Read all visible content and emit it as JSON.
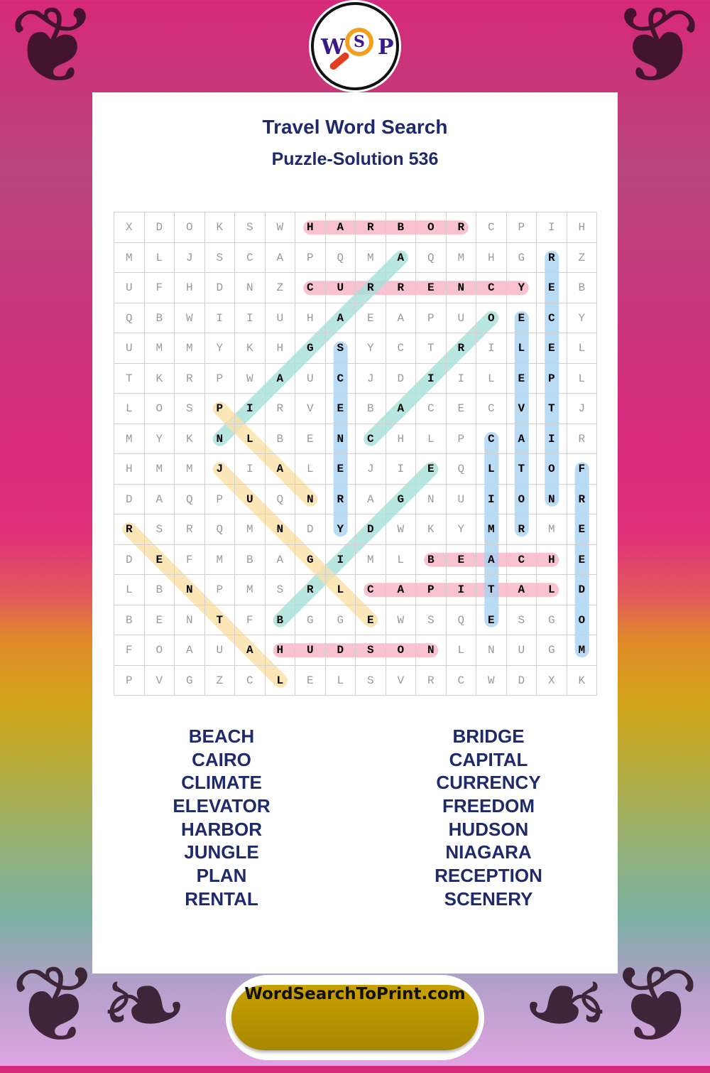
{
  "logo": {
    "letters": [
      "W",
      "S",
      "P"
    ]
  },
  "title": "Travel Word Search",
  "subtitle": "Puzzle-Solution 536",
  "grid": [
    "XDOKSWHARBORCPIH",
    "MLJSCAPQMAQMHGRZ",
    "UFHDNZCURRENCYEB",
    "QBWIIUHAEAPUOECY",
    "UMMYKHGSYCTRILEL",
    "TKRPWAUCJDIILEPL",
    "LOSPIRVEBACECVTJ",
    "MYKNLBENCHLPCAIR",
    "HMMJIALEJIEQLTOF",
    "DAQPUQNRAGNUIONR",
    "RSRQMNDYDWKYMRME",
    "DEFMBAGIMLBEACHE",
    "LBNPMSRLCAPITALD",
    "BENTFBGGEWSQESGO",
    "FOAUAHUDSONLNUGM",
    "PVGZCLELSVRCWDXK"
  ],
  "colors": {
    "horizontal": "#f7b3c6",
    "vertical": "#a9d3f2",
    "diag_up": "#a6e0da",
    "diag_down": "#fbe0a6",
    "text": "#1f2a6a",
    "pill": "#b89400"
  },
  "solutions": [
    {
      "word": "HARBOR",
      "start": [
        1,
        7
      ],
      "end": [
        1,
        12
      ],
      "color": "horizontal"
    },
    {
      "word": "CURRENCY",
      "start": [
        3,
        7
      ],
      "end": [
        3,
        14
      ],
      "color": "horizontal"
    },
    {
      "word": "BEACH",
      "start": [
        12,
        11
      ],
      "end": [
        12,
        15
      ],
      "color": "horizontal"
    },
    {
      "word": "CAPITAL",
      "start": [
        13,
        9
      ],
      "end": [
        13,
        15
      ],
      "color": "horizontal"
    },
    {
      "word": "HUDSON",
      "start": [
        15,
        6
      ],
      "end": [
        15,
        11
      ],
      "color": "horizontal"
    },
    {
      "word": "RECEPTION",
      "start": [
        2,
        15
      ],
      "end": [
        10,
        15
      ],
      "color": "vertical"
    },
    {
      "word": "ELEVATOR",
      "start": [
        4,
        14
      ],
      "end": [
        11,
        14
      ],
      "color": "vertical"
    },
    {
      "word": "SCENERY",
      "start": [
        5,
        8
      ],
      "end": [
        11,
        8
      ],
      "color": "vertical"
    },
    {
      "word": "CLIMATE",
      "start": [
        8,
        13
      ],
      "end": [
        14,
        13
      ],
      "color": "vertical"
    },
    {
      "word": "FREEDOM",
      "start": [
        9,
        16
      ],
      "end": [
        15,
        16
      ],
      "color": "vertical"
    },
    {
      "word": "NIAGARA",
      "start": [
        8,
        4
      ],
      "end": [
        2,
        10
      ],
      "color": "diag_up"
    },
    {
      "word": "CAIRO",
      "start": [
        8,
        9
      ],
      "end": [
        4,
        13
      ],
      "color": "diag_up"
    },
    {
      "word": "BRIDGE",
      "start": [
        14,
        6
      ],
      "end": [
        9,
        11
      ],
      "color": "diag_up"
    },
    {
      "word": "PLAN",
      "start": [
        7,
        4
      ],
      "end": [
        10,
        7
      ],
      "color": "diag_down"
    },
    {
      "word": "JUNGLE",
      "start": [
        9,
        4
      ],
      "end": [
        14,
        9
      ],
      "color": "diag_down"
    },
    {
      "word": "RENTAL",
      "start": [
        11,
        1
      ],
      "end": [
        16,
        6
      ],
      "color": "diag_down"
    }
  ],
  "word_list": {
    "left": [
      "BEACH",
      "CAIRO",
      "CLIMATE",
      "ELEVATOR",
      "HARBOR",
      "JUNGLE",
      "PLAN",
      "RENTAL"
    ],
    "right": [
      "BRIDGE",
      "CAPITAL",
      "CURRENCY",
      "FREEDOM",
      "HUDSON",
      "NIAGARA",
      "RECEPTION",
      "SCENERY"
    ]
  },
  "footer": {
    "site": "WordSearchToPrint.com"
  }
}
